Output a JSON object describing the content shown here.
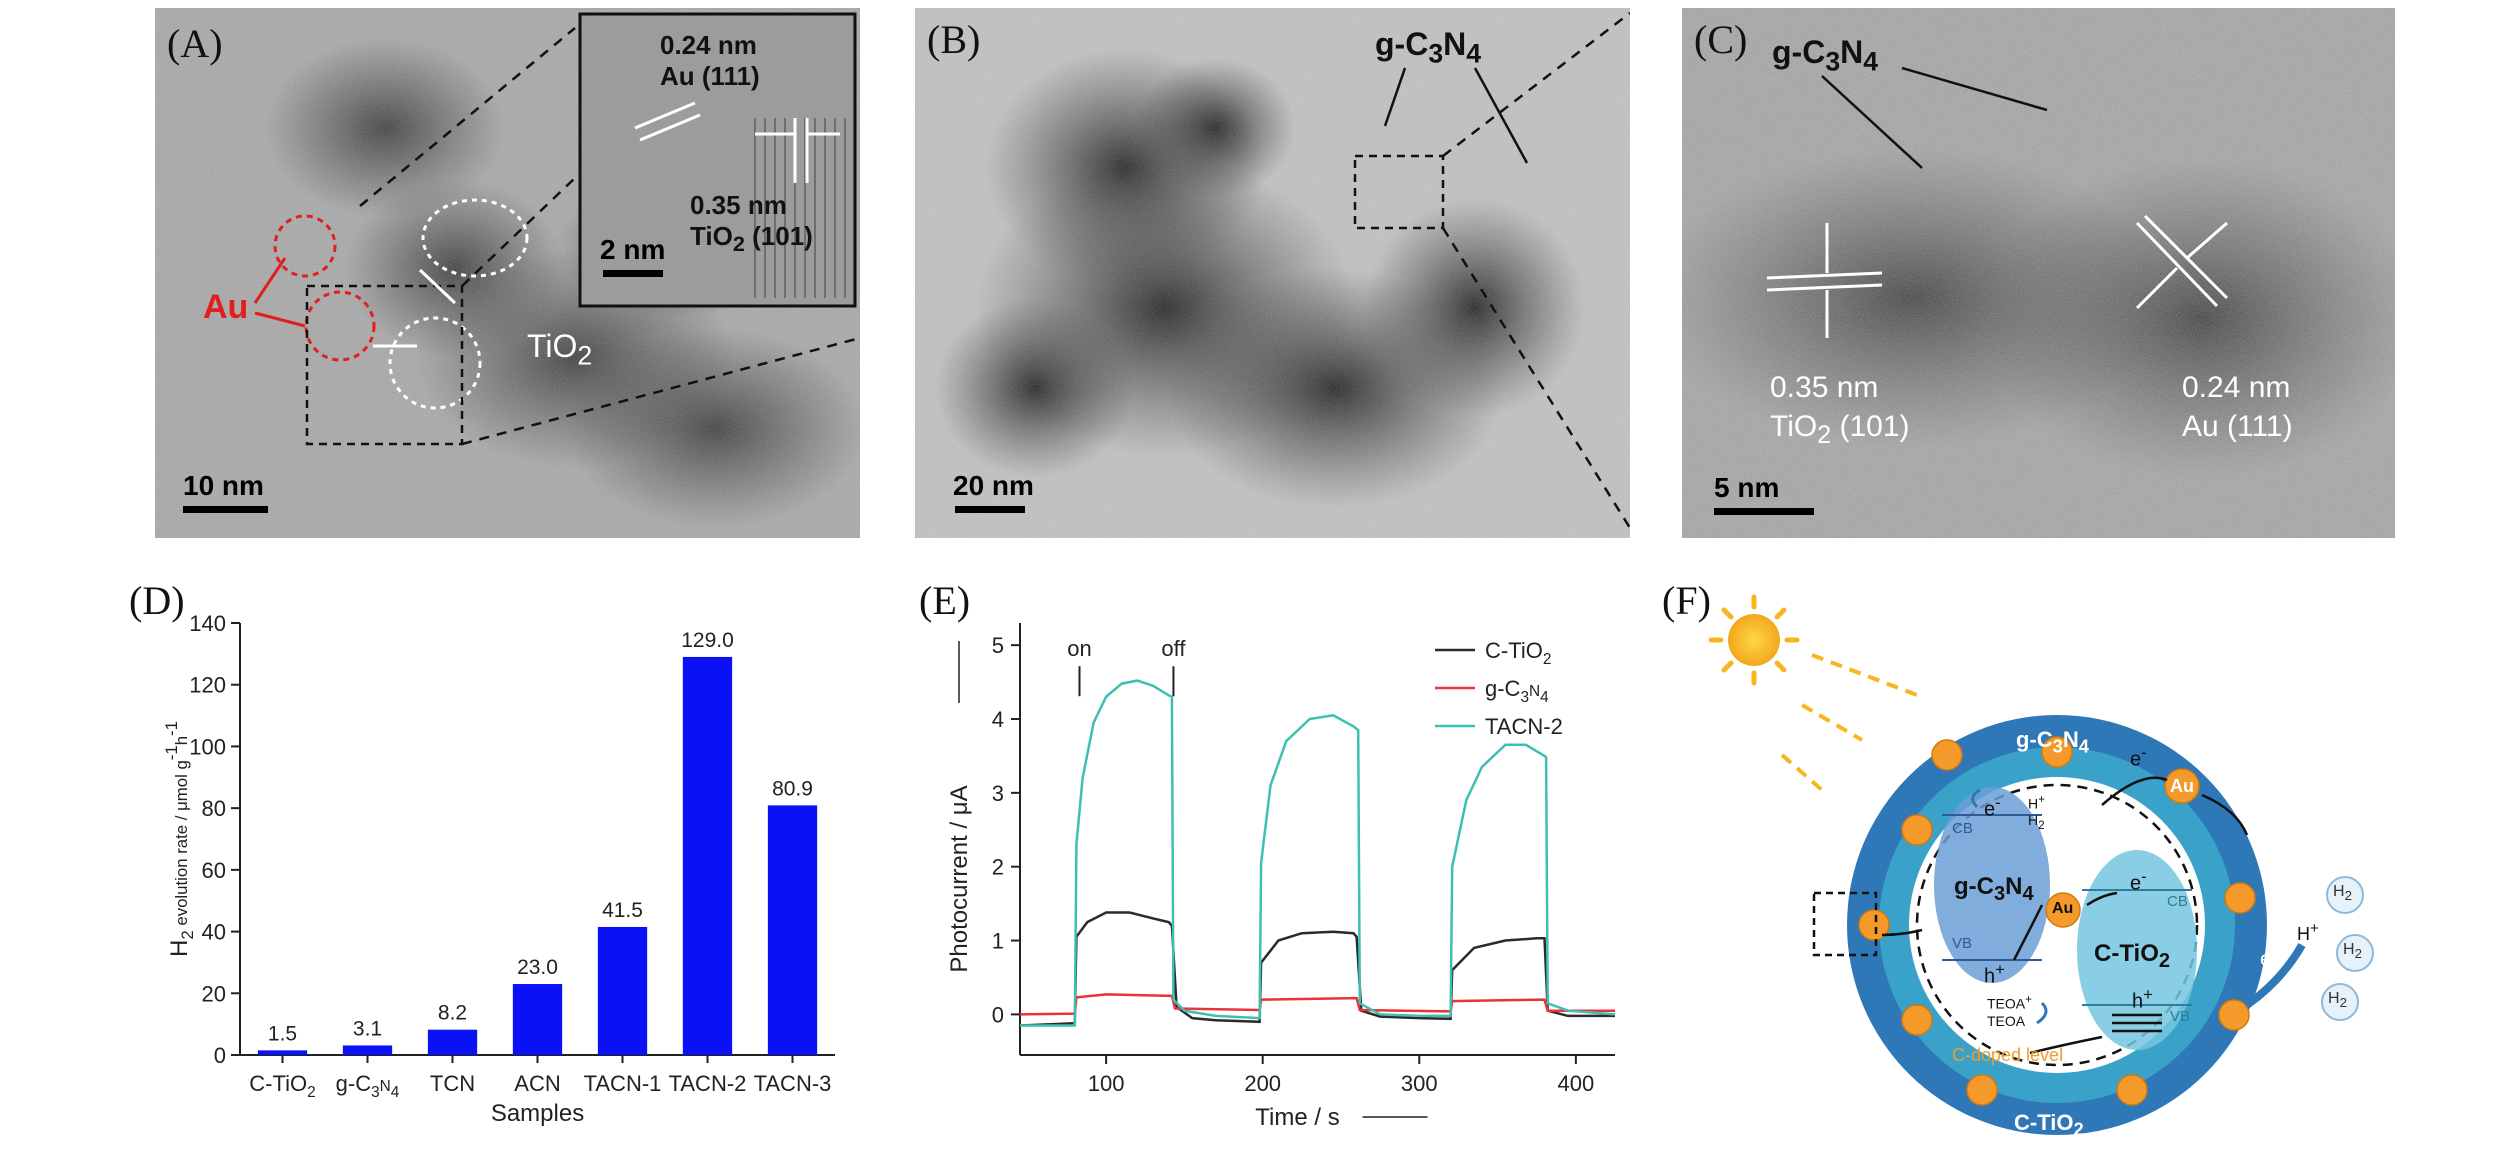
{
  "panels": {
    "A": {
      "label": "(A)",
      "scale": "10 nm",
      "inset_scale": "2 nm",
      "inset_d1": "0.24 nm",
      "inset_d1_plane": "Au (111)",
      "inset_d2": "0.35 nm",
      "inset_d2_plane": "TiO",
      "inset_d2_sub": "2",
      "inset_d2_plane_tail": " (101)",
      "au_label": "Au",
      "tio2_label": "TiO",
      "tio2_sub": "2"
    },
    "B": {
      "label": "(B)",
      "scale": "20 nm",
      "gcn": "g-C",
      "gcn_sub1": "3",
      "gcn_mid": "N",
      "gcn_sub2": "4"
    },
    "C": {
      "label": "(C)",
      "scale": "5 nm",
      "gcn": "g-C",
      "gcn_sub1": "3",
      "gcn_mid": "N",
      "gcn_sub2": "4",
      "d1": "0.35 nm",
      "d1_plane": "TiO",
      "d1_sub": "2",
      "d1_tail": " (101)",
      "d2": "0.24 nm",
      "d2_plane": "Au (111)"
    },
    "D": {
      "label": "(D)"
    },
    "E": {
      "label": "(E)"
    },
    "F": {
      "label": "(F)",
      "outer_ring": "g-C",
      "outer_sub1": "3",
      "outer_mid": "N",
      "outer_sub2": "4",
      "inner_ring": "C-TiO",
      "inner_ring_sub": "2",
      "gcn_band": "g-C",
      "gcn_band_sub1": "3",
      "gcn_band_mid": "N",
      "gcn_band_sub2": "4",
      "tio2_band": "C-TiO",
      "tio2_band_sub": "2",
      "cb": "CB",
      "vb": "VB",
      "electron": "e",
      "hole": "h",
      "plus": "+",
      "minus": "-",
      "au": "Au",
      "hplus": "H",
      "h2": "H",
      "h2_sub": "2",
      "teoa_plus": "TEOA",
      "teoa": "TEOA",
      "cdoped": "C-doped level",
      "colors": {
        "outer": "#2f78b8",
        "middle": "#3aa2c8",
        "inner": "#ffffff",
        "au": "#f39a2a",
        "sun": "#f7b521",
        "cdoped": "#f39a2a"
      }
    }
  },
  "chart_data": [
    {
      "type": "bar",
      "panel": "D",
      "categories": [
        "C-TiO2",
        "g-C3N4",
        "TCN",
        "ACN",
        "TACN-1",
        "TACN-2",
        "TACN-3"
      ],
      "category_display": [
        {
          "base": "C-TiO",
          "sub": "2",
          "tail": ""
        },
        {
          "base": "g-C",
          "sub": "3",
          "tail": "N",
          "sub2": "4"
        },
        {
          "base": "TCN"
        },
        {
          "base": "ACN"
        },
        {
          "base": "TACN-1"
        },
        {
          "base": "TACN-2"
        },
        {
          "base": "TACN-3"
        }
      ],
      "values": [
        1.5,
        3.1,
        8.2,
        23.0,
        41.5,
        129.0,
        80.9
      ],
      "value_labels": [
        "1.5",
        "3.1",
        "8.2",
        "23.0",
        "41.5",
        "129.0",
        "80.9"
      ],
      "xlabel": "Samples",
      "ylabel_parts": {
        "pre": "H",
        "sub": "2",
        "mid": " evolution rate / μmol g",
        "sup1": "-1",
        "mid2": "h",
        "sup2": "-1"
      },
      "ylim": [
        0,
        140
      ],
      "yticks": [
        0,
        20,
        40,
        60,
        80,
        100,
        120,
        140
      ],
      "color": "#0a12f5"
    },
    {
      "type": "line",
      "panel": "E",
      "xlabel": "Time / s",
      "ylabel": "Photocurrent / μA",
      "xlim": [
        45,
        425
      ],
      "ylim": [
        -0.55,
        5.3
      ],
      "xticks": [
        100,
        200,
        300,
        400
      ],
      "yticks": [
        0,
        1,
        2,
        3,
        4,
        5
      ],
      "annotations": [
        {
          "text": "on",
          "x": 83,
          "y": 4.85
        },
        {
          "text": "off",
          "x": 143,
          "y": 4.85
        }
      ],
      "series": [
        {
          "name": "C-TiO2",
          "name_display": {
            "base": "C-TiO",
            "sub": "2"
          },
          "color": "#2b2b2b",
          "points": [
            [
              45,
              -0.15
            ],
            [
              80,
              -0.12
            ],
            [
              81,
              1.05
            ],
            [
              88,
              1.25
            ],
            [
              100,
              1.38
            ],
            [
              115,
              1.38
            ],
            [
              130,
              1.3
            ],
            [
              140,
              1.25
            ],
            [
              142,
              1.2
            ],
            [
              145,
              0.1
            ],
            [
              155,
              -0.05
            ],
            [
              170,
              -0.08
            ],
            [
              198,
              -0.1
            ],
            [
              199,
              0.7
            ],
            [
              210,
              1.0
            ],
            [
              225,
              1.1
            ],
            [
              245,
              1.12
            ],
            [
              258,
              1.1
            ],
            [
              260,
              1.05
            ],
            [
              263,
              0.05
            ],
            [
              275,
              -0.03
            ],
            [
              300,
              -0.05
            ],
            [
              320,
              -0.06
            ],
            [
              321,
              0.6
            ],
            [
              335,
              0.9
            ],
            [
              355,
              1.0
            ],
            [
              375,
              1.03
            ],
            [
              380,
              1.03
            ],
            [
              382,
              0.05
            ],
            [
              395,
              -0.02
            ],
            [
              425,
              -0.02
            ]
          ]
        },
        {
          "name": "g-C3N4",
          "name_display": {
            "base": "g-C",
            "sub": "3",
            "tail": "N",
            "sub2": "4"
          },
          "color": "#e8333a",
          "points": [
            [
              45,
              0.0
            ],
            [
              80,
              0.01
            ],
            [
              81,
              0.23
            ],
            [
              100,
              0.27
            ],
            [
              142,
              0.25
            ],
            [
              144,
              0.08
            ],
            [
              198,
              0.06
            ],
            [
              199,
              0.2
            ],
            [
              260,
              0.22
            ],
            [
              262,
              0.06
            ],
            [
              320,
              0.04
            ],
            [
              321,
              0.18
            ],
            [
              380,
              0.2
            ],
            [
              382,
              0.05
            ],
            [
              425,
              0.05
            ]
          ]
        },
        {
          "name": "TACN-2",
          "name_display": {
            "base": "TACN-2"
          },
          "color": "#3ebfb4",
          "points": [
            [
              45,
              -0.15
            ],
            [
              80,
              -0.15
            ],
            [
              81,
              2.3
            ],
            [
              85,
              3.2
            ],
            [
              92,
              3.95
            ],
            [
              100,
              4.3
            ],
            [
              110,
              4.48
            ],
            [
              120,
              4.52
            ],
            [
              130,
              4.45
            ],
            [
              140,
              4.32
            ],
            [
              142,
              4.3
            ],
            [
              143,
              0.2
            ],
            [
              150,
              0.05
            ],
            [
              170,
              -0.02
            ],
            [
              198,
              -0.05
            ],
            [
              199,
              2.05
            ],
            [
              205,
              3.1
            ],
            [
              215,
              3.7
            ],
            [
              230,
              4.0
            ],
            [
              245,
              4.05
            ],
            [
              258,
              3.9
            ],
            [
              261,
              3.85
            ],
            [
              262,
              0.15
            ],
            [
              275,
              0.0
            ],
            [
              300,
              -0.02
            ],
            [
              320,
              -0.02
            ],
            [
              321,
              2.0
            ],
            [
              330,
              2.9
            ],
            [
              340,
              3.35
            ],
            [
              355,
              3.65
            ],
            [
              368,
              3.65
            ],
            [
              380,
              3.5
            ],
            [
              381,
              3.48
            ],
            [
              382,
              0.15
            ],
            [
              395,
              0.05
            ],
            [
              425,
              0.0
            ]
          ]
        }
      ]
    }
  ]
}
